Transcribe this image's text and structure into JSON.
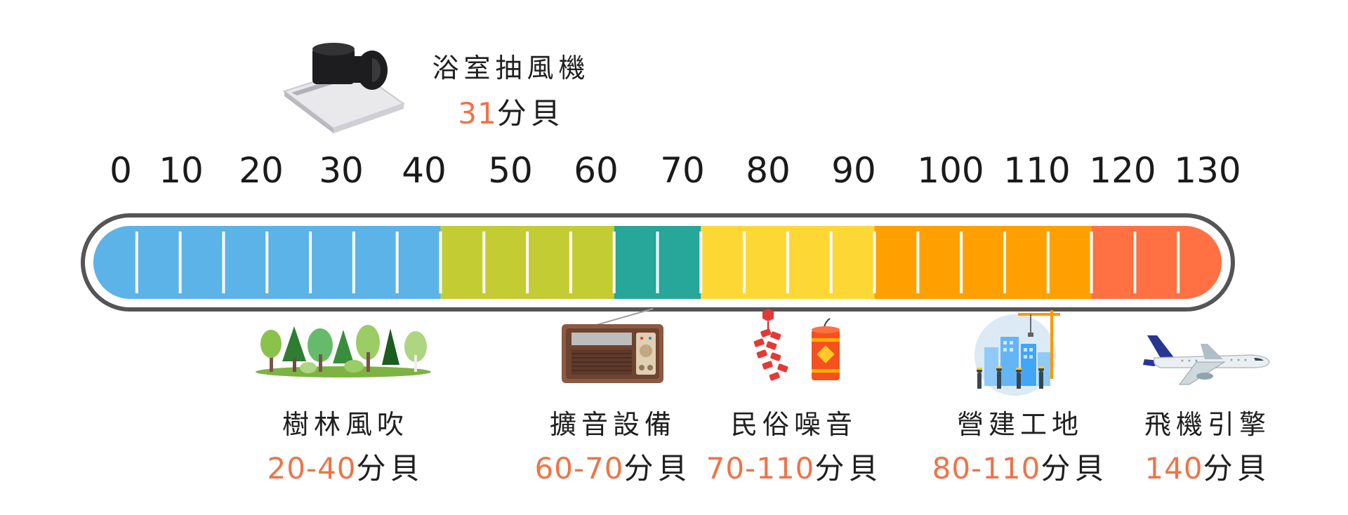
{
  "scale": {
    "ticks": [
      "0",
      "10",
      "20",
      "30",
      "40",
      "50",
      "60",
      "70",
      "80",
      "90",
      "100",
      "110",
      "120",
      "130"
    ]
  },
  "bands": [
    {
      "from": 0,
      "to": 40,
      "color": "#5cb3e8"
    },
    {
      "from": 40,
      "to": 60,
      "color": "#c4cc33"
    },
    {
      "from": 60,
      "to": 70,
      "color": "#27a69a"
    },
    {
      "from": 70,
      "to": 90,
      "color": "#fdd835"
    },
    {
      "from": 90,
      "to": 115,
      "color": "#ffa000"
    },
    {
      "from": 115,
      "to": 130,
      "color": "#ff7043"
    }
  ],
  "colors": {
    "accent": "#ef7348",
    "frame": "#555555"
  },
  "featured": {
    "name": "浴室抽風機",
    "value": "31",
    "unit": "分貝",
    "icon": "exhaust-fan-icon"
  },
  "items": [
    {
      "name": "樹林風吹",
      "value": "20-40",
      "unit": "分貝",
      "icon": "forest-icon"
    },
    {
      "name": "擴音設備",
      "value": "60-70",
      "unit": "分貝",
      "icon": "radio-icon"
    },
    {
      "name": "民俗噪音",
      "value": "70-110",
      "unit": "分貝",
      "icon": "firecracker-icon"
    },
    {
      "name": "營建工地",
      "value": "80-110",
      "unit": "分貝",
      "icon": "construction-site-icon"
    },
    {
      "name": "飛機引擎",
      "value": "140",
      "unit": "分貝",
      "icon": "airplane-icon"
    }
  ]
}
